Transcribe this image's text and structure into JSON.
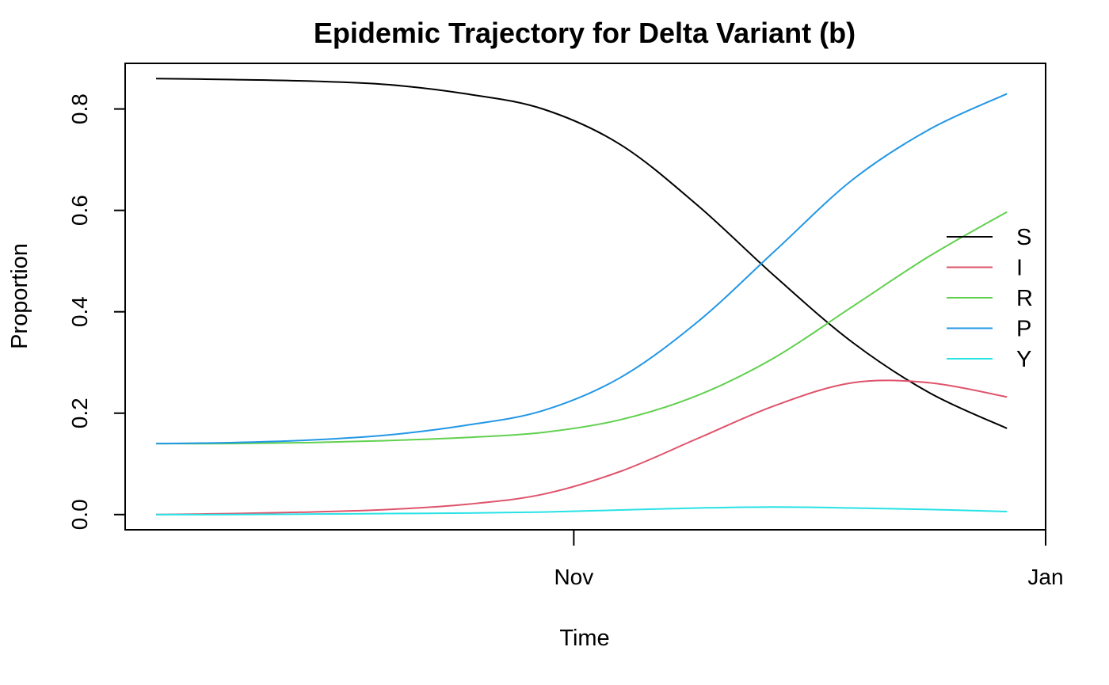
{
  "chart_data": {
    "type": "line",
    "title": "Epidemic Trajectory for Delta Variant (b)",
    "xlabel": "Time",
    "ylabel": "Proportion",
    "x_ticks": [
      {
        "date": "2021-11-01",
        "label": "Nov"
      },
      {
        "date": "2022-01-01",
        "label": "Jan"
      }
    ],
    "y_ticks": [
      {
        "value": 0.0,
        "label": "0.0"
      },
      {
        "value": 0.2,
        "label": "0.2"
      },
      {
        "value": 0.4,
        "label": "0.4"
      },
      {
        "value": 0.6,
        "label": "0.6"
      },
      {
        "value": 0.8,
        "label": "0.8"
      }
    ],
    "xlim": [
      "2021-09-04",
      "2022-01-01"
    ],
    "ylim": [
      -0.03,
      0.89
    ],
    "legend_position": "right",
    "grid": false,
    "x": [
      "2021-09-08",
      "2021-09-18",
      "2021-09-28",
      "2021-10-08",
      "2021-10-18",
      "2021-10-28",
      "2021-11-07",
      "2021-11-17",
      "2021-11-27",
      "2021-12-07",
      "2021-12-17",
      "2021-12-27"
    ],
    "series": [
      {
        "name": "S",
        "color": "#000000",
        "values": [
          0.86,
          0.858,
          0.855,
          0.848,
          0.83,
          0.8,
          0.73,
          0.61,
          0.47,
          0.34,
          0.24,
          0.17
        ]
      },
      {
        "name": "I",
        "color": "#df536b",
        "values": [
          0.0,
          0.002,
          0.005,
          0.01,
          0.02,
          0.04,
          0.085,
          0.15,
          0.215,
          0.26,
          0.26,
          0.232
        ]
      },
      {
        "name": "R",
        "color": "#61d04f",
        "values": [
          0.14,
          0.14,
          0.142,
          0.146,
          0.152,
          0.162,
          0.187,
          0.235,
          0.31,
          0.41,
          0.51,
          0.597
        ]
      },
      {
        "name": "P",
        "color": "#2297e6",
        "values": [
          0.14,
          0.142,
          0.147,
          0.157,
          0.176,
          0.205,
          0.27,
          0.38,
          0.52,
          0.66,
          0.76,
          0.83
        ]
      },
      {
        "name": "Y",
        "color": "#28e2e5",
        "values": [
          0.0,
          0.0,
          0.001,
          0.002,
          0.003,
          0.005,
          0.009,
          0.013,
          0.015,
          0.013,
          0.01,
          0.006
        ]
      }
    ]
  }
}
